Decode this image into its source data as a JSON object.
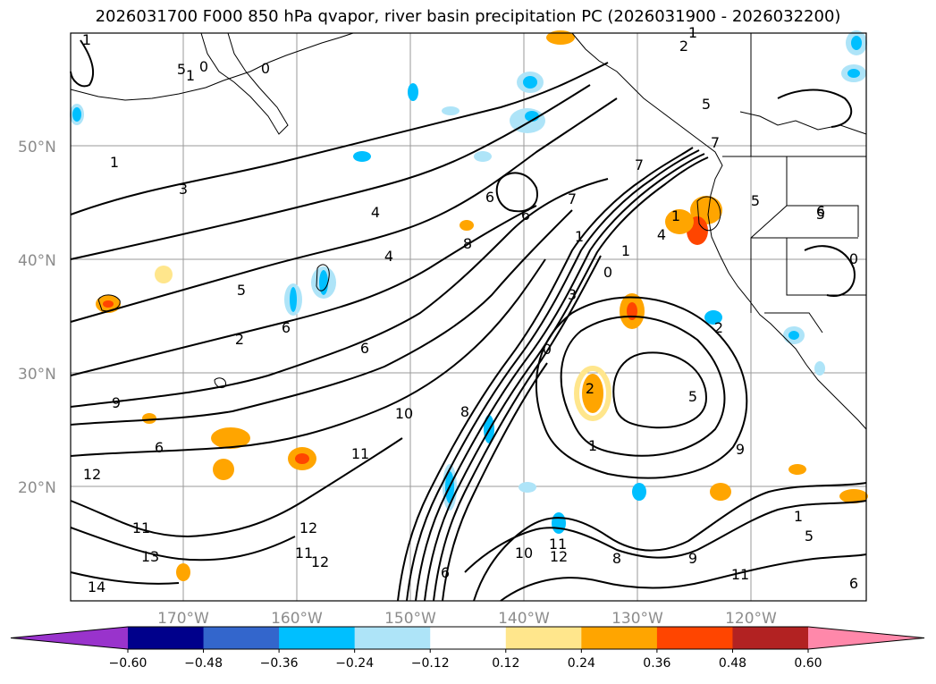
{
  "title": "2026031700 F000 850 hPa qvapor, river basin precipitation PC (2026031900 - 2026032200)",
  "axes": {
    "lat_ticks": [
      "50°N",
      "40°N",
      "30°N",
      "20°N"
    ],
    "lon_ticks": [
      "170°W",
      "160°W",
      "150°W",
      "140°W",
      "130°W",
      "120°W"
    ]
  },
  "contour_labels": [
    "1",
    "2",
    "1",
    "0",
    "0",
    "1",
    "1",
    "3",
    "4",
    "4",
    "6",
    "6",
    "7",
    "8",
    "5",
    "6",
    "2",
    "6",
    "7",
    "1",
    "1",
    "1",
    "4",
    "5",
    "5",
    "0",
    "0",
    "3",
    "2",
    "5",
    "5",
    "7",
    "9",
    "6",
    "12",
    "11",
    "13",
    "14",
    "10",
    "11",
    "8",
    "12",
    "11",
    "12",
    "10",
    "11",
    "12",
    "6",
    "8",
    "9",
    "11",
    "6",
    "1",
    "1",
    "2",
    "0",
    "9",
    "5",
    "5",
    "6"
  ],
  "colorbar": {
    "ticks": [
      "−0.60",
      "−0.48",
      "−0.36",
      "−0.24",
      "−0.12",
      "0.12",
      "0.24",
      "0.36",
      "0.48",
      "0.60"
    ],
    "colors": [
      "#9933cc",
      "#00008b",
      "#3366cc",
      "#00bfff",
      "#aee4f8",
      "#ffffff",
      "#ffe68c",
      "#ffa500",
      "#ff4500",
      "#b22222",
      "#ff88aa"
    ]
  }
}
